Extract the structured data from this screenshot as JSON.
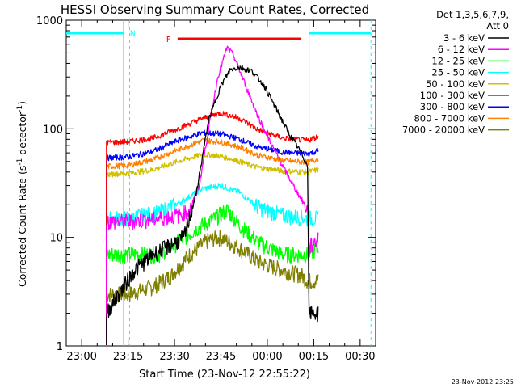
{
  "chart_data": {
    "type": "line",
    "title": "HESSI Observing Summary Count Rates, Corrected",
    "xlabel": "Start Time (23-Nov-12 22:55:22)",
    "ylabel": "Corrected Count Rate (s⁻¹ detector⁻¹)",
    "ylabel_parts": {
      "main": "Corrected Count Rate (s",
      "sup1": "-1",
      "mid": " detector",
      "sup2": "-1",
      "end": ")"
    },
    "yscale": "log",
    "ylim": [
      1,
      1000
    ],
    "xlim_minutes_after_2255": [
      0,
      100
    ],
    "x_ticks": [
      {
        "label": "23:00",
        "min": 5
      },
      {
        "label": "23:15",
        "min": 20
      },
      {
        "label": "23:30",
        "min": 35
      },
      {
        "label": "23:45",
        "min": 50
      },
      {
        "label": "00:00",
        "min": 65
      },
      {
        "label": "00:15",
        "min": 80
      },
      {
        "label": "00:30",
        "min": 95
      }
    ],
    "y_ticks": [
      {
        "label": "1",
        "value": 1
      },
      {
        "label": "10",
        "value": 10
      },
      {
        "label": "100",
        "value": 100
      },
      {
        "label": "1000",
        "value": 1000
      }
    ],
    "legend": {
      "header1": "Det 1,3,5,6,7,9,",
      "header2": "Att 0",
      "placement": "right"
    },
    "series": [
      {
        "name": "3 - 6 keV",
        "color": "#000000",
        "points": [
          [
            13,
            2
          ],
          [
            17,
            3
          ],
          [
            22,
            5
          ],
          [
            28,
            7
          ],
          [
            32,
            8
          ],
          [
            38,
            10
          ],
          [
            42,
            25
          ],
          [
            46,
            120
          ],
          [
            50,
            250
          ],
          [
            53,
            350
          ],
          [
            56,
            370
          ],
          [
            60,
            340
          ],
          [
            64,
            250
          ],
          [
            68,
            150
          ],
          [
            72,
            90
          ],
          [
            76,
            60
          ],
          [
            78,
            45
          ],
          [
            78.5,
            2
          ],
          [
            81.5,
            2
          ]
        ]
      },
      {
        "name": "6 - 12 keV",
        "color": "#ff00ff",
        "points": [
          [
            13,
            14
          ],
          [
            20,
            14
          ],
          [
            30,
            15
          ],
          [
            36,
            16
          ],
          [
            40,
            18
          ],
          [
            43,
            30
          ],
          [
            46,
            100
          ],
          [
            49,
            300
          ],
          [
            52,
            560
          ],
          [
            54,
            480
          ],
          [
            58,
            250
          ],
          [
            62,
            130
          ],
          [
            66,
            75
          ],
          [
            70,
            45
          ],
          [
            74,
            28
          ],
          [
            78,
            18
          ],
          [
            78.5,
            8
          ],
          [
            81.5,
            10
          ]
        ]
      },
      {
        "name": "12 - 25 keV",
        "color": "#00ff00",
        "points": [
          [
            13,
            7
          ],
          [
            20,
            7
          ],
          [
            30,
            7
          ],
          [
            36,
            9
          ],
          [
            42,
            12
          ],
          [
            48,
            15
          ],
          [
            52,
            18
          ],
          [
            56,
            13
          ],
          [
            62,
            9
          ],
          [
            70,
            7
          ],
          [
            78,
            7
          ],
          [
            81.5,
            8
          ]
        ]
      },
      {
        "name": "25 - 50 keV",
        "color": "#00ffff",
        "points": [
          [
            13,
            15
          ],
          [
            20,
            15
          ],
          [
            30,
            17
          ],
          [
            38,
            22
          ],
          [
            44,
            28
          ],
          [
            50,
            30
          ],
          [
            56,
            26
          ],
          [
            62,
            19
          ],
          [
            70,
            16
          ],
          [
            78,
            15
          ],
          [
            81.5,
            15
          ]
        ]
      },
      {
        "name": "50 - 100 keV",
        "color": "#d0c000",
        "points": [
          [
            13,
            38
          ],
          [
            20,
            39
          ],
          [
            28,
            42
          ],
          [
            36,
            50
          ],
          [
            44,
            58
          ],
          [
            50,
            56
          ],
          [
            56,
            50
          ],
          [
            62,
            44
          ],
          [
            70,
            41
          ],
          [
            78,
            40
          ],
          [
            81.5,
            42
          ]
        ]
      },
      {
        "name": "100 - 300 keV",
        "color": "#ff0000",
        "points": [
          [
            13,
            75
          ],
          [
            20,
            76
          ],
          [
            28,
            82
          ],
          [
            36,
            100
          ],
          [
            44,
            125
          ],
          [
            50,
            140
          ],
          [
            56,
            125
          ],
          [
            62,
            98
          ],
          [
            70,
            82
          ],
          [
            78,
            78
          ],
          [
            81.5,
            85
          ]
        ]
      },
      {
        "name": "300 - 800 keV",
        "color": "#0000ff",
        "points": [
          [
            13,
            54
          ],
          [
            20,
            55
          ],
          [
            28,
            62
          ],
          [
            36,
            78
          ],
          [
            44,
            92
          ],
          [
            50,
            90
          ],
          [
            56,
            80
          ],
          [
            62,
            68
          ],
          [
            70,
            61
          ],
          [
            78,
            59
          ],
          [
            81.5,
            63
          ]
        ]
      },
      {
        "name": "800 - 7000 keV",
        "color": "#ff8000",
        "points": [
          [
            13,
            45
          ],
          [
            20,
            46
          ],
          [
            28,
            52
          ],
          [
            36,
            64
          ],
          [
            44,
            78
          ],
          [
            50,
            76
          ],
          [
            56,
            68
          ],
          [
            62,
            57
          ],
          [
            70,
            51
          ],
          [
            78,
            49
          ],
          [
            81.5,
            53
          ]
        ]
      },
      {
        "name": "7000 - 20000 keV",
        "color": "#808000",
        "points": [
          [
            13,
            3
          ],
          [
            20,
            3
          ],
          [
            28,
            3.5
          ],
          [
            34,
            4.5
          ],
          [
            40,
            7
          ],
          [
            46,
            9.5
          ],
          [
            50,
            10
          ],
          [
            56,
            8
          ],
          [
            62,
            6
          ],
          [
            70,
            5
          ],
          [
            76,
            4.5
          ],
          [
            78,
            4
          ],
          [
            81.5,
            4
          ]
        ]
      }
    ],
    "annotations": {
      "night_label": "N",
      "flare_label": "F",
      "date_stamp": "23-Nov-2012 23:25",
      "night_bars": [
        [
          0,
          18.5
        ],
        [
          78.5,
          98.5
        ]
      ],
      "night_marks": [
        18.5,
        20.5,
        78.5,
        98.5
      ],
      "flare_bar": [
        36,
        76
      ],
      "colors": {
        "night": "#00ffff",
        "flare": "#ff0000",
        "axes": "#000000"
      }
    }
  }
}
